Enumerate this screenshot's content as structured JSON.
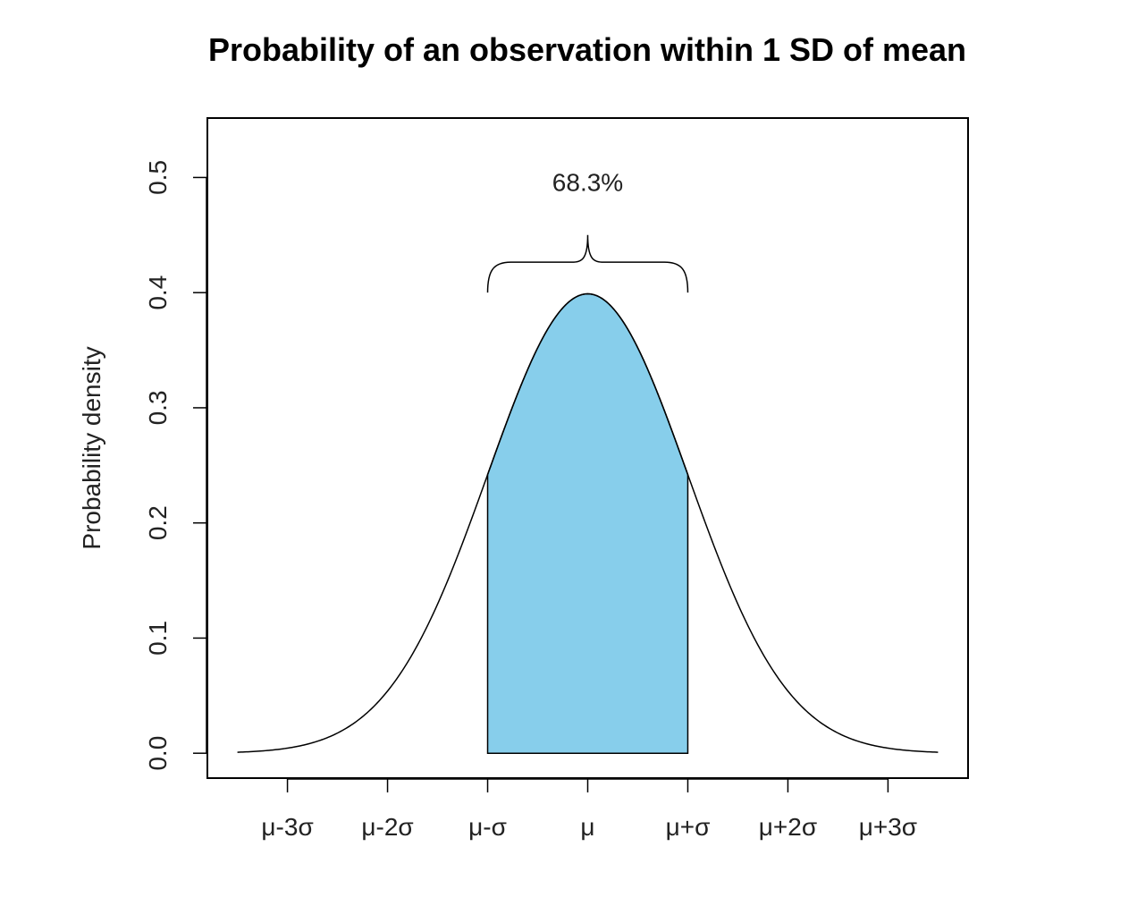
{
  "chart_data": {
    "type": "area",
    "title": "Probability of an observation within 1 SD of mean",
    "xlabel": "",
    "ylabel": "Probability density",
    "xlim": [
      -3.8,
      3.8
    ],
    "ylim": [
      -0.0216,
      0.5516
    ],
    "x_range_curve": [
      -3.5,
      3.5
    ],
    "y_ticks": [
      0.0,
      0.1,
      0.2,
      0.3,
      0.4,
      0.5
    ],
    "y_tick_labels": [
      "0.0",
      "0.1",
      "0.2",
      "0.3",
      "0.4",
      "0.5"
    ],
    "x_ticks": [
      -3,
      -2,
      -1,
      0,
      1,
      2,
      3
    ],
    "x_tick_labels": [
      "μ-3σ",
      "μ-2σ",
      "μ-σ",
      "μ",
      "μ+σ",
      "μ+2σ",
      "μ+3σ"
    ],
    "series": [
      {
        "function": "normal_pdf",
        "mean": 0,
        "sd": 1
      }
    ],
    "shaded_region": {
      "from": -1,
      "to": 1,
      "color": "#87CEEB"
    },
    "annotation": {
      "text": "68.3%",
      "x": 0,
      "y": 0.496
    },
    "brace": {
      "from": -1,
      "to": 1,
      "base_y": 0.4,
      "peak_y": 0.45
    },
    "grid": false,
    "legend": "none"
  }
}
